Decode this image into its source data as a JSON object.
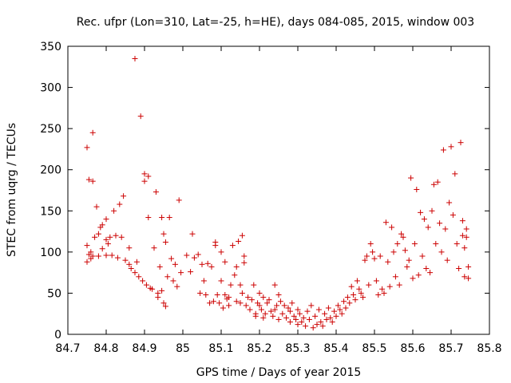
{
  "chart_data": {
    "type": "scatter",
    "title": "Rec. ufpr (Lon=310, Lat=-25, h=HE), days 084-085, 2015, window 003",
    "xlabel": "GPS time / Days of year 2015",
    "ylabel": "STEC from uqrg / TECUs",
    "xlim": [
      84.7,
      85.8
    ],
    "ylim": [
      0,
      350
    ],
    "x_ticks": [
      "84.7",
      "84.8",
      "84.9",
      "85",
      "85.1",
      "85.2",
      "85.3",
      "85.4",
      "85.5",
      "85.6",
      "85.7",
      "85.8"
    ],
    "y_ticks": [
      "0",
      "50",
      "100",
      "150",
      "200",
      "250",
      "300",
      "350"
    ],
    "grid": false,
    "marker": "+",
    "color": "#cc0000",
    "points": [
      [
        84.75,
        227
      ],
      [
        84.755,
        188
      ],
      [
        84.765,
        245
      ],
      [
        84.765,
        186
      ],
      [
        84.75,
        108
      ],
      [
        84.76,
        100
      ],
      [
        84.755,
        97
      ],
      [
        84.765,
        95
      ],
      [
        84.75,
        88
      ],
      [
        84.76,
        92
      ],
      [
        84.77,
        118
      ],
      [
        84.78,
        122
      ],
      [
        84.775,
        155
      ],
      [
        84.785,
        130
      ],
      [
        84.79,
        133
      ],
      [
        84.8,
        140
      ],
      [
        84.8,
        115
      ],
      [
        84.805,
        110
      ],
      [
        84.81,
        118
      ],
      [
        84.78,
        95
      ],
      [
        84.79,
        104
      ],
      [
        84.8,
        96
      ],
      [
        84.815,
        96
      ],
      [
        84.82,
        150
      ],
      [
        84.825,
        120
      ],
      [
        84.83,
        93
      ],
      [
        84.835,
        158
      ],
      [
        84.84,
        118
      ],
      [
        84.845,
        168
      ],
      [
        84.85,
        90
      ],
      [
        84.86,
        105
      ],
      [
        84.86,
        85
      ],
      [
        84.865,
        80
      ],
      [
        84.875,
        75
      ],
      [
        84.875,
        335
      ],
      [
        84.88,
        88
      ],
      [
        84.885,
        70
      ],
      [
        84.89,
        265
      ],
      [
        84.895,
        65
      ],
      [
        84.9,
        195
      ],
      [
        84.9,
        186
      ],
      [
        84.905,
        60
      ],
      [
        84.91,
        192
      ],
      [
        84.91,
        142
      ],
      [
        84.915,
        56
      ],
      [
        84.92,
        55
      ],
      [
        84.925,
        105
      ],
      [
        84.93,
        173
      ],
      [
        84.935,
        50
      ],
      [
        84.935,
        45
      ],
      [
        84.94,
        82
      ],
      [
        84.945,
        142
      ],
      [
        84.945,
        53
      ],
      [
        84.95,
        38
      ],
      [
        84.95,
        122
      ],
      [
        84.955,
        112
      ],
      [
        84.955,
        34
      ],
      [
        84.96,
        70
      ],
      [
        84.965,
        142
      ],
      [
        84.97,
        92
      ],
      [
        84.975,
        65
      ],
      [
        84.98,
        85
      ],
      [
        84.985,
        58
      ],
      [
        84.99,
        163
      ],
      [
        84.995,
        75
      ],
      [
        85.01,
        96
      ],
      [
        85.02,
        76
      ],
      [
        85.025,
        122
      ],
      [
        85.03,
        93
      ],
      [
        85.04,
        97
      ],
      [
        85.045,
        50
      ],
      [
        85.05,
        85
      ],
      [
        85.055,
        65
      ],
      [
        85.06,
        48
      ],
      [
        85.065,
        86
      ],
      [
        85.07,
        38
      ],
      [
        85.075,
        82
      ],
      [
        85.08,
        40
      ],
      [
        85.085,
        112
      ],
      [
        85.085,
        108
      ],
      [
        85.09,
        48
      ],
      [
        85.095,
        38
      ],
      [
        85.1,
        65
      ],
      [
        85.1,
        100
      ],
      [
        85.105,
        32
      ],
      [
        85.11,
        88
      ],
      [
        85.11,
        48
      ],
      [
        85.115,
        43
      ],
      [
        85.12,
        45
      ],
      [
        85.12,
        35
      ],
      [
        85.125,
        60
      ],
      [
        85.13,
        108
      ],
      [
        85.135,
        72
      ],
      [
        85.14,
        82
      ],
      [
        85.14,
        40
      ],
      [
        85.145,
        113
      ],
      [
        85.15,
        38
      ],
      [
        85.15,
        60
      ],
      [
        85.155,
        120
      ],
      [
        85.155,
        50
      ],
      [
        85.16,
        95
      ],
      [
        85.16,
        87
      ],
      [
        85.165,
        35
      ],
      [
        85.17,
        45
      ],
      [
        85.175,
        30
      ],
      [
        85.18,
        42
      ],
      [
        85.185,
        60
      ],
      [
        85.19,
        25
      ],
      [
        85.19,
        22
      ],
      [
        85.195,
        38
      ],
      [
        85.2,
        50
      ],
      [
        85.2,
        35
      ],
      [
        85.205,
        30
      ],
      [
        85.21,
        45
      ],
      [
        85.21,
        20
      ],
      [
        85.215,
        25
      ],
      [
        85.22,
        38
      ],
      [
        85.225,
        42
      ],
      [
        85.23,
        28
      ],
      [
        85.235,
        22
      ],
      [
        85.24,
        60
      ],
      [
        85.24,
        30
      ],
      [
        85.245,
        35
      ],
      [
        85.25,
        48
      ],
      [
        85.25,
        18
      ],
      [
        85.255,
        40
      ],
      [
        85.26,
        25
      ],
      [
        85.265,
        35
      ],
      [
        85.27,
        20
      ],
      [
        85.275,
        32
      ],
      [
        85.28,
        28
      ],
      [
        85.28,
        15
      ],
      [
        85.285,
        38
      ],
      [
        85.29,
        22
      ],
      [
        85.295,
        18
      ],
      [
        85.3,
        30
      ],
      [
        85.3,
        12
      ],
      [
        85.305,
        25
      ],
      [
        85.31,
        15
      ],
      [
        85.315,
        20
      ],
      [
        85.32,
        10
      ],
      [
        85.325,
        28
      ],
      [
        85.33,
        18
      ],
      [
        85.335,
        35
      ],
      [
        85.34,
        8
      ],
      [
        85.345,
        22
      ],
      [
        85.35,
        12
      ],
      [
        85.355,
        30
      ],
      [
        85.36,
        15
      ],
      [
        85.365,
        10
      ],
      [
        85.37,
        25
      ],
      [
        85.375,
        18
      ],
      [
        85.38,
        32
      ],
      [
        85.385,
        20
      ],
      [
        85.39,
        15
      ],
      [
        85.395,
        28
      ],
      [
        85.4,
        22
      ],
      [
        85.405,
        35
      ],
      [
        85.41,
        30
      ],
      [
        85.415,
        25
      ],
      [
        85.42,
        40
      ],
      [
        85.425,
        32
      ],
      [
        85.43,
        45
      ],
      [
        85.435,
        38
      ],
      [
        85.44,
        58
      ],
      [
        85.445,
        48
      ],
      [
        85.45,
        42
      ],
      [
        85.455,
        65
      ],
      [
        85.46,
        55
      ],
      [
        85.465,
        50
      ],
      [
        85.47,
        45
      ],
      [
        85.475,
        90
      ],
      [
        85.48,
        95
      ],
      [
        85.485,
        60
      ],
      [
        85.49,
        110
      ],
      [
        85.495,
        100
      ],
      [
        85.5,
        92
      ],
      [
        85.505,
        65
      ],
      [
        85.51,
        48
      ],
      [
        85.515,
        95
      ],
      [
        85.52,
        55
      ],
      [
        85.525,
        50
      ],
      [
        85.53,
        136
      ],
      [
        85.535,
        88
      ],
      [
        85.54,
        58
      ],
      [
        85.545,
        130
      ],
      [
        85.55,
        100
      ],
      [
        85.555,
        70
      ],
      [
        85.56,
        110
      ],
      [
        85.565,
        60
      ],
      [
        85.57,
        122
      ],
      [
        85.575,
        118
      ],
      [
        85.58,
        102
      ],
      [
        85.585,
        82
      ],
      [
        85.59,
        90
      ],
      [
        85.595,
        190
      ],
      [
        85.6,
        68
      ],
      [
        85.605,
        110
      ],
      [
        85.61,
        176
      ],
      [
        85.615,
        72
      ],
      [
        85.62,
        148
      ],
      [
        85.625,
        95
      ],
      [
        85.63,
        140
      ],
      [
        85.635,
        80
      ],
      [
        85.64,
        130
      ],
      [
        85.645,
        75
      ],
      [
        85.65,
        150
      ],
      [
        85.655,
        182
      ],
      [
        85.66,
        110
      ],
      [
        85.665,
        185
      ],
      [
        85.67,
        135
      ],
      [
        85.675,
        100
      ],
      [
        85.68,
        224
      ],
      [
        85.685,
        128
      ],
      [
        85.69,
        90
      ],
      [
        85.695,
        160
      ],
      [
        85.7,
        228
      ],
      [
        85.705,
        145
      ],
      [
        85.71,
        195
      ],
      [
        85.715,
        110
      ],
      [
        85.72,
        80
      ],
      [
        85.725,
        233
      ],
      [
        85.73,
        138
      ],
      [
        85.735,
        70
      ],
      [
        85.74,
        128
      ],
      [
        85.74,
        118
      ],
      [
        85.745,
        82
      ],
      [
        85.745,
        68
      ],
      [
        85.73,
        120
      ],
      [
        85.735,
        105
      ]
    ]
  }
}
